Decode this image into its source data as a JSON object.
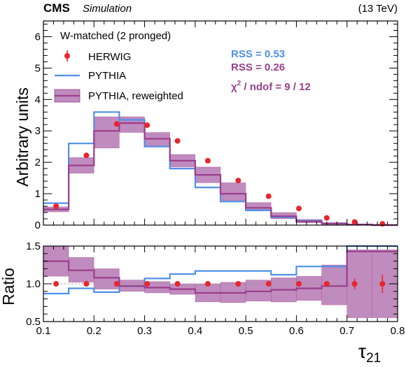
{
  "header": {
    "experiment": "CMS",
    "tag": "Simulation",
    "energy": "(13 TeV)"
  },
  "legend": {
    "title": "W-matched (2 pronged)",
    "entries": [
      "HERWIG",
      "PYTHIA",
      "PYTHIA, reweighted"
    ]
  },
  "stats": {
    "rss_pythia": "RSS = 0.53",
    "rss_reweighted": "RSS = 0.26",
    "chi2_prefix": "χ",
    "chi2_sup": "2",
    "chi2_suffix": " / ndof = 9 / 12"
  },
  "colors": {
    "herwig": "#e8262e",
    "pythia": "#4f90e8",
    "reweighted_line": "#9a3f8c",
    "reweighted_band": "#c08bbe"
  },
  "chart_data": [
    {
      "type": "bar",
      "panel": "main",
      "ylabel": "Arbitrary units",
      "xlim": [
        0.1,
        0.8
      ],
      "ylim": [
        0,
        6.5
      ],
      "yticks": [
        0,
        1,
        2,
        3,
        4,
        5,
        6
      ],
      "grid": false,
      "legend_position": "top-left",
      "bin_edges": [
        0.1,
        0.15,
        0.2,
        0.25,
        0.3,
        0.35,
        0.4,
        0.45,
        0.5,
        0.55,
        0.6,
        0.65,
        0.7,
        0.75,
        0.8
      ],
      "series": [
        {
          "name": "HERWIG",
          "style": "points",
          "x": [
            0.125,
            0.185,
            0.245,
            0.305,
            0.365,
            0.425,
            0.485,
            0.545,
            0.605,
            0.66,
            0.715,
            0.77
          ],
          "values": [
            0.6,
            2.22,
            3.22,
            3.18,
            2.68,
            2.05,
            1.42,
            0.92,
            0.53,
            0.23,
            0.1,
            0.04
          ]
        },
        {
          "name": "PYTHIA",
          "style": "step",
          "values": [
            0.7,
            2.6,
            3.6,
            3.35,
            2.5,
            1.8,
            1.2,
            0.75,
            0.47,
            0.25,
            0.14,
            0.05,
            0.02,
            0.0
          ]
        },
        {
          "name": "PYTHIA, reweighted",
          "style": "step-band",
          "values": [
            0.5,
            1.9,
            3.0,
            3.25,
            2.75,
            2.05,
            1.6,
            1.0,
            0.55,
            0.28,
            0.12,
            0.05,
            0.02,
            0.0
          ],
          "band_low": [
            0.42,
            1.65,
            2.45,
            2.95,
            2.5,
            1.85,
            1.35,
            0.78,
            0.45,
            0.2,
            0.07,
            0.02,
            0.0,
            0.0
          ],
          "band_high": [
            0.58,
            2.15,
            3.45,
            3.45,
            2.95,
            2.25,
            1.85,
            1.35,
            0.72,
            0.4,
            0.18,
            0.08,
            0.04,
            0.02
          ]
        }
      ]
    },
    {
      "type": "bar",
      "panel": "ratio",
      "xlabel": "τ",
      "xlabel_sub": "21",
      "ylabel": "Ratio",
      "xlim": [
        0.1,
        0.8
      ],
      "ylim": [
        0.5,
        1.5
      ],
      "xticks": [
        0.1,
        0.2,
        0.3,
        0.4,
        0.5,
        0.6,
        0.7,
        0.8
      ],
      "yticks": [
        0.5,
        1.0,
        1.5
      ],
      "reference_line": 1.0,
      "series": [
        {
          "name": "HERWIG",
          "style": "points",
          "x": [
            0.125,
            0.185,
            0.245,
            0.305,
            0.365,
            0.425,
            0.485,
            0.545,
            0.605,
            0.66,
            0.715,
            0.77
          ],
          "values": [
            1.0,
            1.0,
            1.0,
            1.0,
            1.0,
            1.0,
            1.0,
            1.0,
            1.0,
            1.0,
            1.0,
            1.0
          ],
          "err": [
            0.0,
            0.0,
            0.0,
            0.0,
            0.0,
            0.0,
            0.0,
            0.0,
            0.0,
            0.0,
            0.07,
            0.12
          ]
        },
        {
          "name": "PYTHIA",
          "style": "step",
          "values": [
            0.87,
            0.94,
            0.89,
            0.97,
            1.07,
            1.13,
            1.17,
            1.17,
            1.17,
            1.12,
            1.23,
            1.23,
            1.5,
            1.5
          ]
        },
        {
          "name": "PYTHIA, reweighted",
          "style": "step-band",
          "values": [
            1.3,
            1.18,
            1.08,
            0.97,
            0.95,
            0.93,
            0.88,
            0.88,
            0.9,
            0.92,
            0.94,
            0.97,
            1.43,
            1.43
          ],
          "band_low": [
            1.1,
            1.02,
            0.93,
            0.9,
            0.88,
            0.86,
            0.76,
            0.75,
            0.77,
            0.76,
            0.78,
            0.72,
            0.55,
            0.55
          ],
          "band_high": [
            1.5,
            1.35,
            1.2,
            1.05,
            1.03,
            1.0,
            1.0,
            1.02,
            1.05,
            1.08,
            1.1,
            1.25,
            1.45,
            1.45
          ]
        }
      ]
    }
  ]
}
